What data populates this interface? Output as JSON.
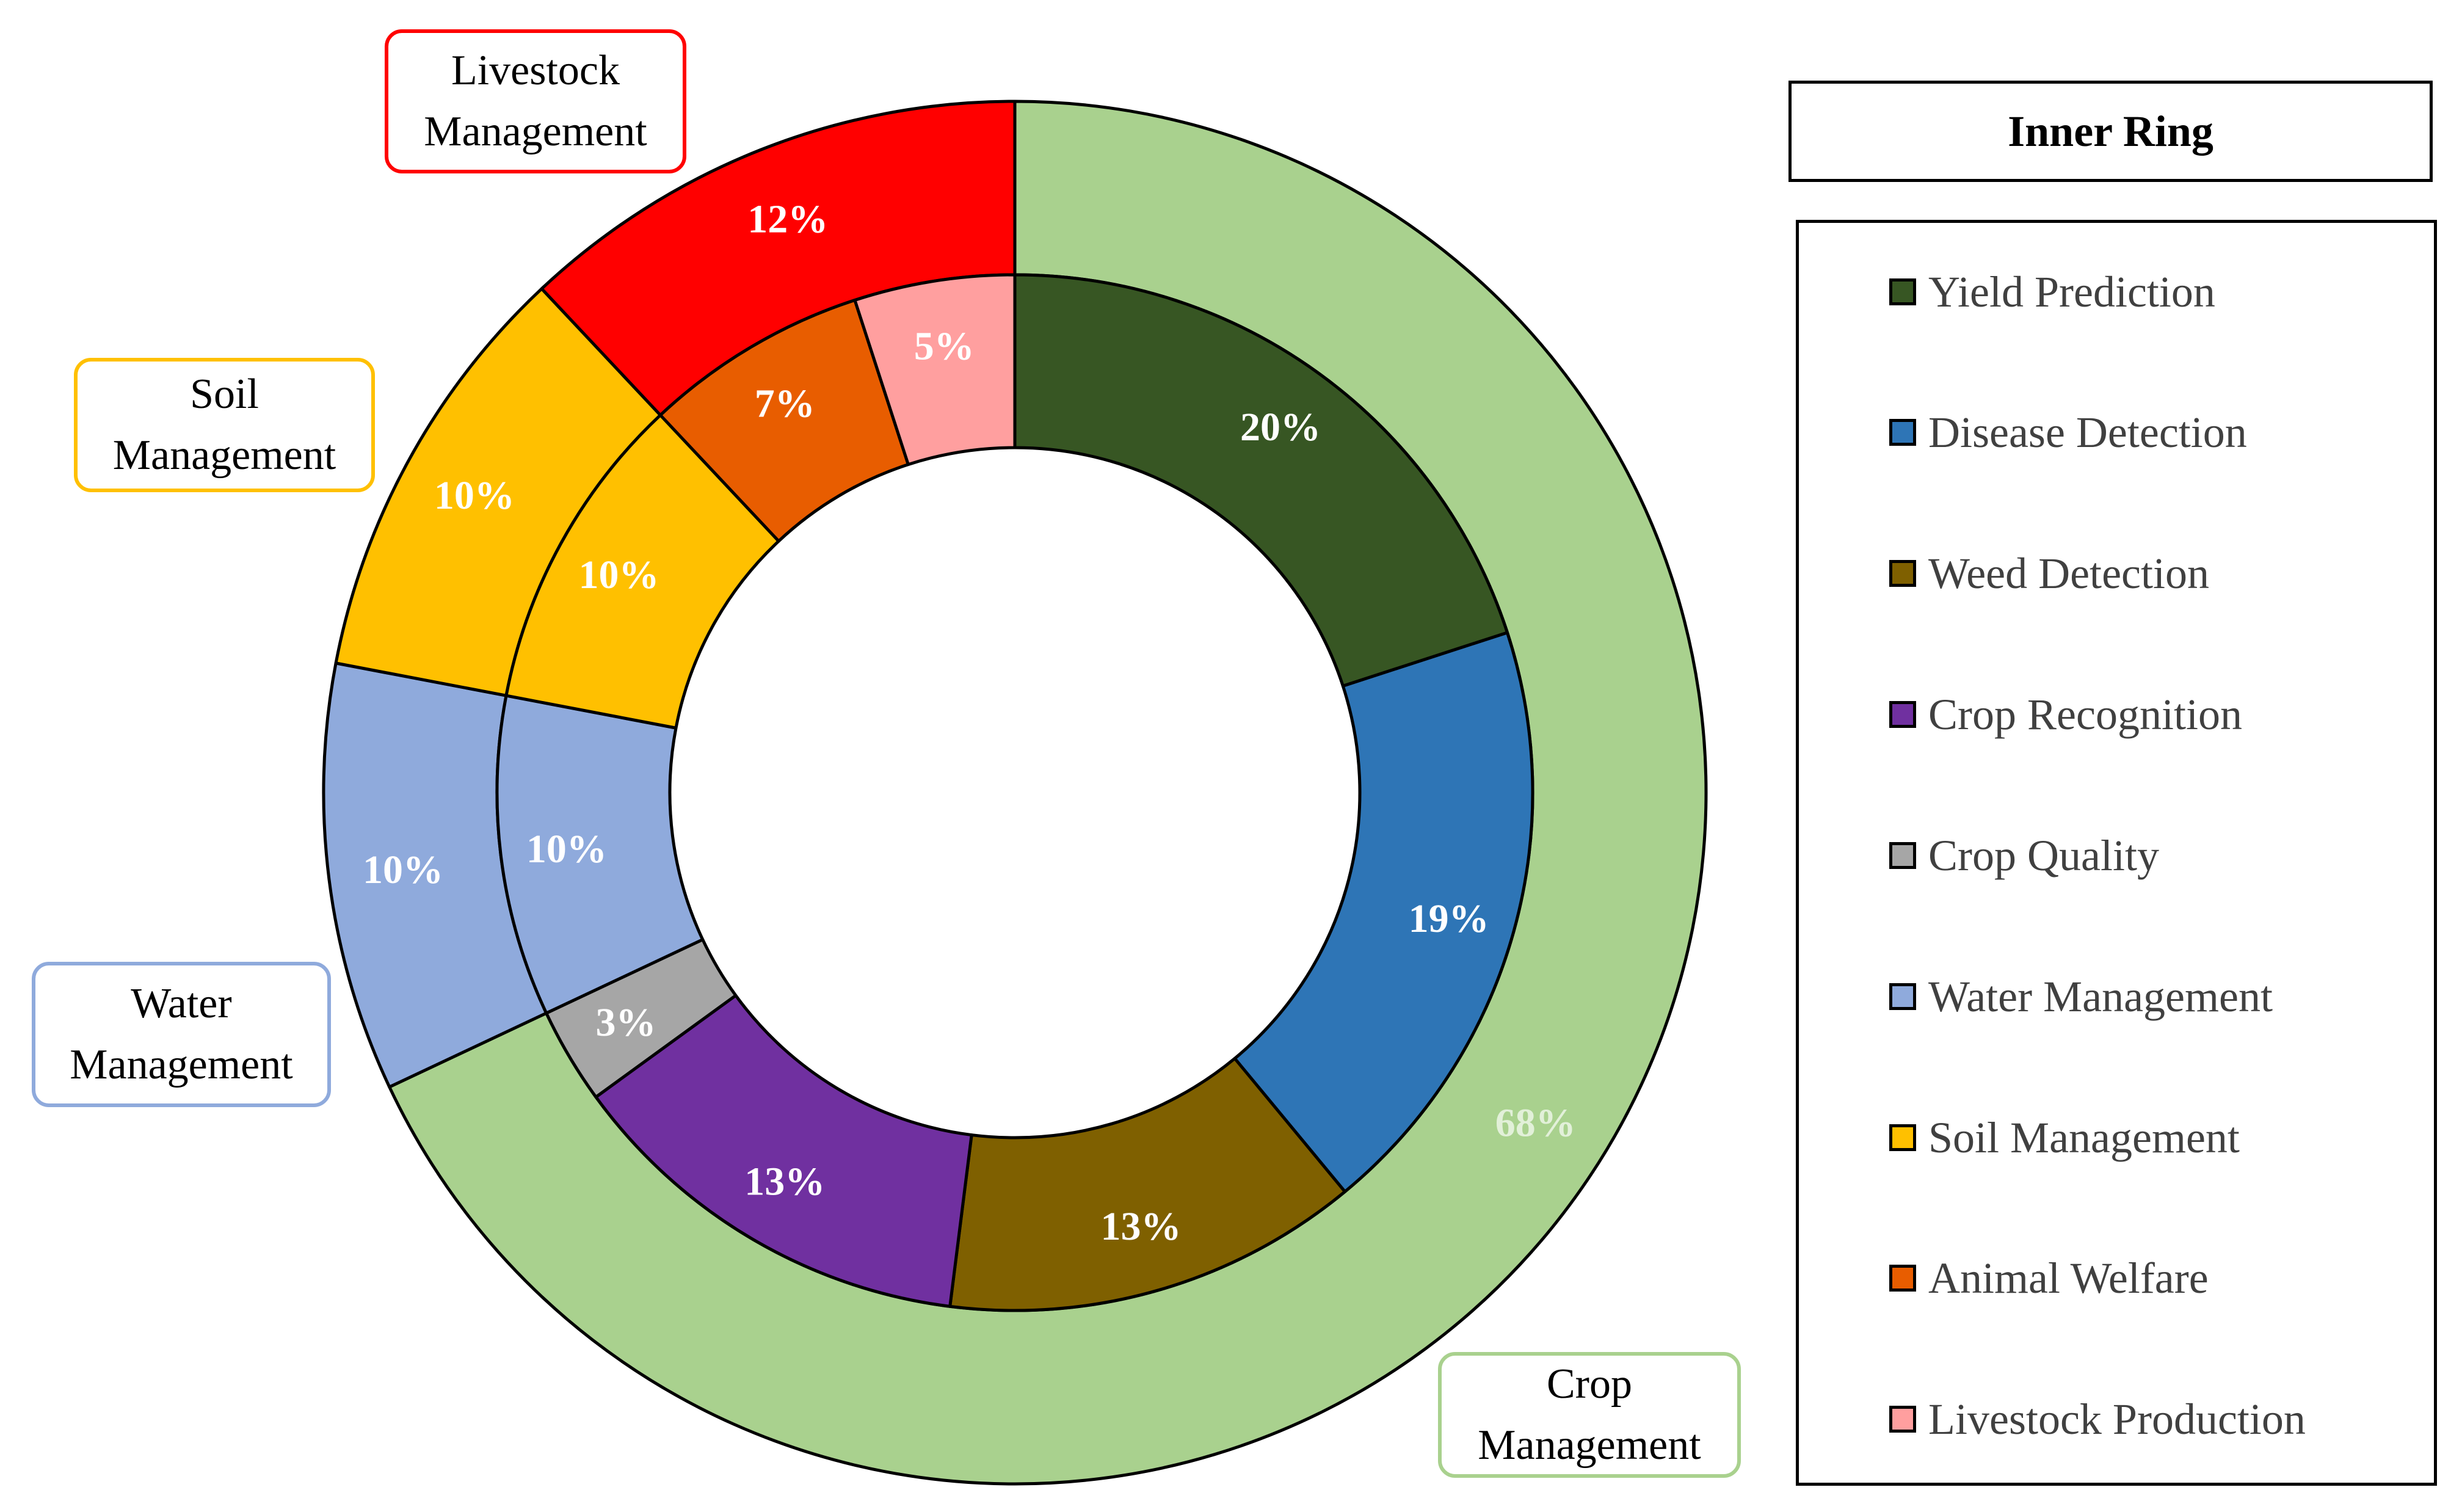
{
  "chart_data": {
    "type": "donut",
    "rings": {
      "outer": {
        "segments": [
          {
            "label": "Crop Management",
            "value": 68,
            "color": "#A9D18E",
            "text_color": "#E2F0D9"
          },
          {
            "label": "Water Management",
            "value": 10,
            "color": "#8FAADC",
            "text_color": "#FFFFFF"
          },
          {
            "label": "Soil Management",
            "value": 10,
            "color": "#FFC000",
            "text_color": "#FFFFFF"
          },
          {
            "label": "Livestock Management",
            "value": 12,
            "color": "#FF0000",
            "text_color": "#FFFFFF"
          }
        ]
      },
      "inner": {
        "segments": [
          {
            "label": "Yield Prediction",
            "value": 20,
            "color": "#375623",
            "text_color": "#FFFFFF"
          },
          {
            "label": "Disease Detection",
            "value": 19,
            "color": "#2E75B6",
            "text_color": "#FFFFFF"
          },
          {
            "label": "Weed Detection",
            "value": 13,
            "color": "#7F6000",
            "text_color": "#FFFFFF"
          },
          {
            "label": "Crop Recognition",
            "value": 13,
            "color": "#7030A0",
            "text_color": "#FFFFFF"
          },
          {
            "label": "Crop Quality",
            "value": 3,
            "color": "#A6A6A6",
            "text_color": "#FFFFFF"
          },
          {
            "label": "Water Management",
            "value": 10,
            "color": "#8FAADC",
            "text_color": "#FFFFFF"
          },
          {
            "label": "Soil Management",
            "value": 10,
            "color": "#FFC000",
            "text_color": "#FFFFFF"
          },
          {
            "label": "Animal Welfare",
            "value": 7,
            "color": "#E85D00",
            "text_color": "#FFFFFF"
          },
          {
            "label": "Livestock Production",
            "value": 5,
            "color": "#FF9F9F",
            "text_color": "#FFFFFF"
          }
        ]
      }
    },
    "value_suffix": "%",
    "outer_labels": [
      {
        "key": "livestock",
        "line1": "Livestock",
        "line2": "Management",
        "border_color": "#FF0000"
      },
      {
        "key": "soil",
        "line1": "Soil",
        "line2": "Management",
        "border_color": "#FFC000"
      },
      {
        "key": "water",
        "line1": "Water",
        "line2": "Management",
        "border_color": "#8FAADC"
      },
      {
        "key": "crop",
        "line1": "Crop",
        "line2": "Management",
        "border_color": "#A9D18E"
      }
    ],
    "legend": {
      "title": "Inner Ring",
      "placement": "right",
      "items": [
        {
          "label": "Yield Prediction",
          "color": "#375623"
        },
        {
          "label": "Disease Detection",
          "color": "#2E75B6"
        },
        {
          "label": "Weed Detection",
          "color": "#7F6000"
        },
        {
          "label": "Crop Recognition",
          "color": "#7030A0"
        },
        {
          "label": "Crop Quality",
          "color": "#A6A6A6"
        },
        {
          "label": "Water Management",
          "color": "#8FAADC"
        },
        {
          "label": "Soil Management",
          "color": "#FFC000"
        },
        {
          "label": "Animal Welfare",
          "color": "#E85D00"
        },
        {
          "label": "Livestock Production",
          "color": "#FF9F9F"
        }
      ]
    }
  }
}
